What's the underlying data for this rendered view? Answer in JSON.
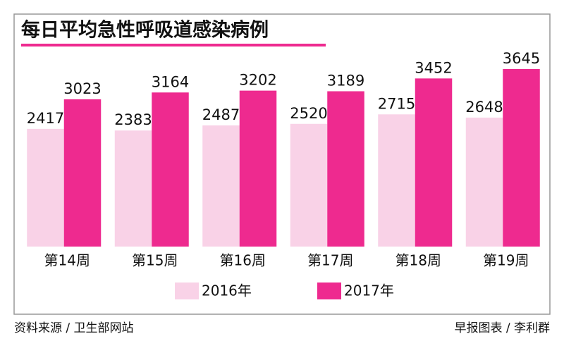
{
  "chart_data": {
    "type": "bar",
    "title": "每日平均急性呼吸道感染病例",
    "categories": [
      "第14周",
      "第15周",
      "第16周",
      "第17周",
      "第18周",
      "第19周"
    ],
    "series": [
      {
        "name": "2016年",
        "color": "#f9d2e7",
        "values": [
          2417,
          2383,
          2487,
          2520,
          2715,
          2648
        ]
      },
      {
        "name": "2017年",
        "color": "#ee2a8f",
        "values": [
          3023,
          3164,
          3202,
          3189,
          3452,
          3645
        ]
      }
    ],
    "source": "资料来源 / 卫生部网站",
    "credit": "早报图表 / 李利群"
  }
}
